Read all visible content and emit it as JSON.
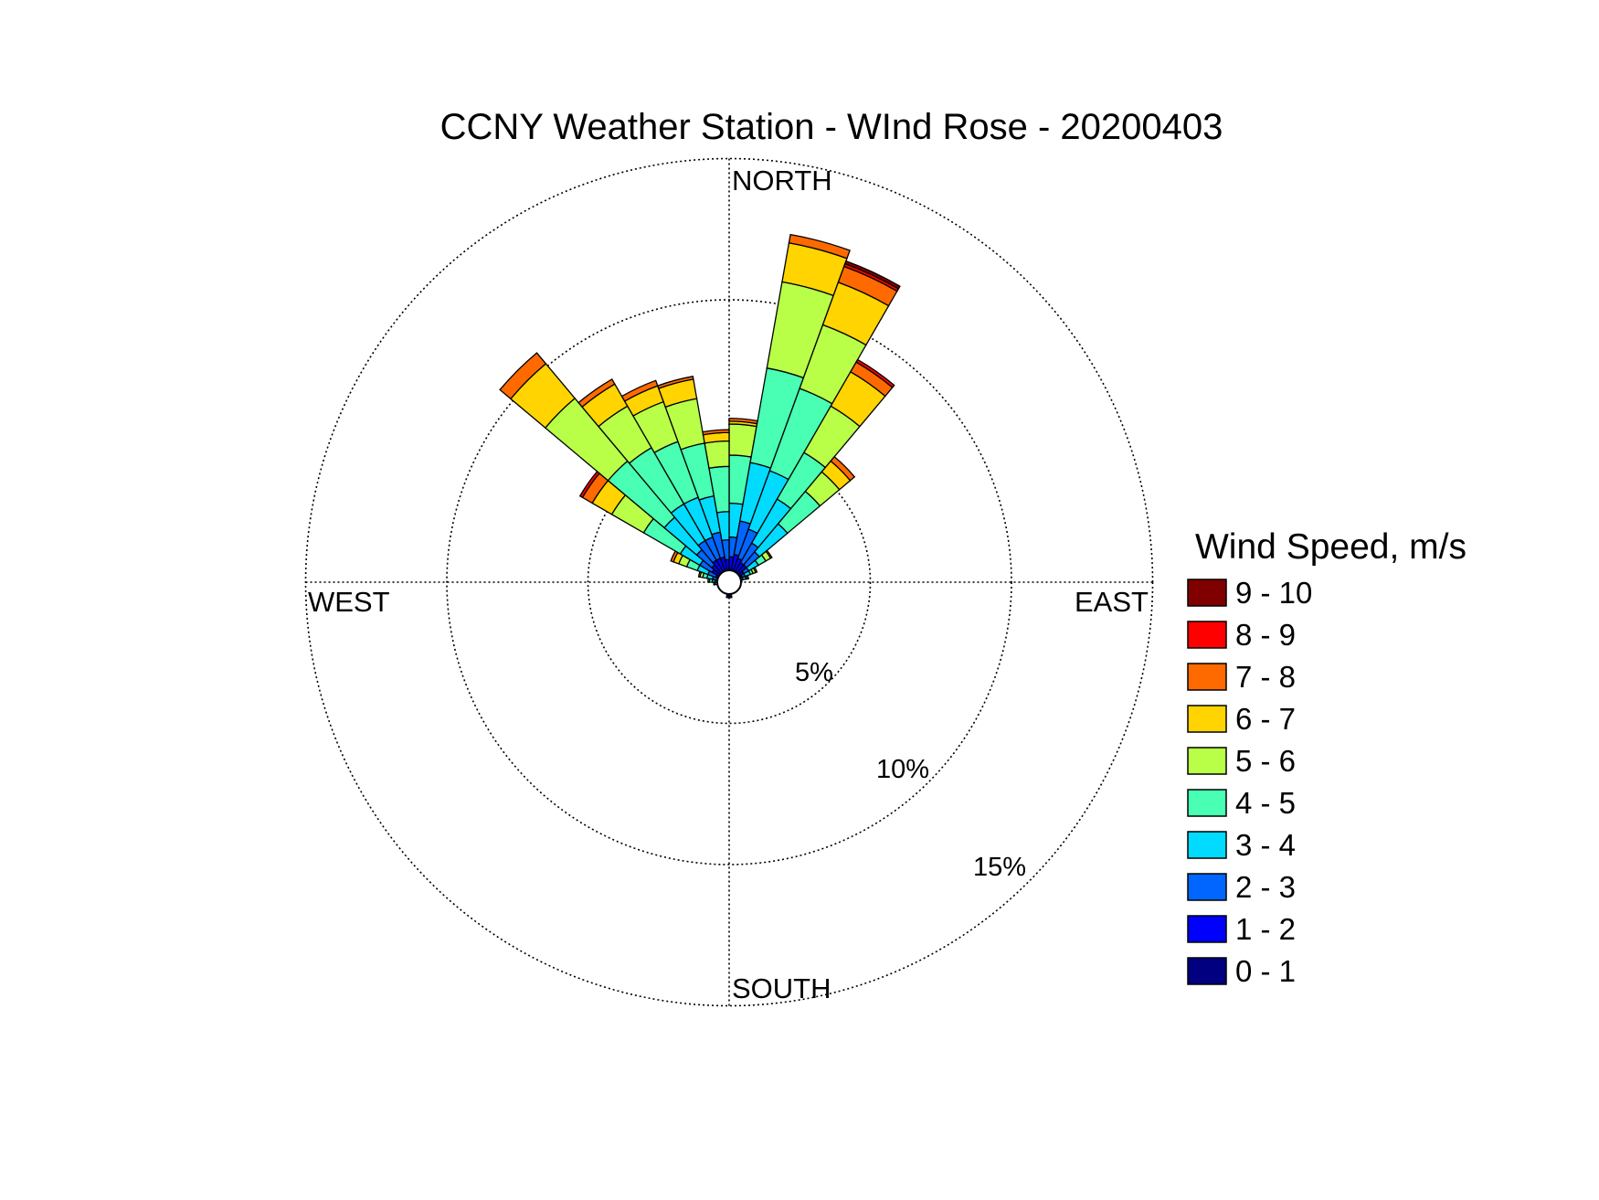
{
  "chart_data": {
    "type": "wind-rose",
    "title": "CCNY Weather Station - WInd Rose - 20200403",
    "directions": {
      "north": "NORTH",
      "east": "EAST",
      "south": "SOUTH",
      "west": "WEST"
    },
    "radial_ticks": [
      5,
      10,
      15
    ],
    "radial_tick_labels": [
      "5%",
      "10%",
      "15%"
    ],
    "radial_max": 15,
    "grid": true,
    "legend": {
      "title": "Wind Speed, m/s",
      "placement": "right",
      "bins": [
        {
          "label": "9 - 10",
          "color": "#800000"
        },
        {
          "label": "8 - 9",
          "color": "#ff0000"
        },
        {
          "label": "7 - 8",
          "color": "#ff6a00"
        },
        {
          "label": "6 - 7",
          "color": "#ffd400"
        },
        {
          "label": "5 - 6",
          "color": "#b9ff48"
        },
        {
          "label": "4 - 5",
          "color": "#48ffb3"
        },
        {
          "label": "3 - 4",
          "color": "#00dbff"
        },
        {
          "label": "2 - 3",
          "color": "#0066ff"
        },
        {
          "label": "1 - 2",
          "color": "#0000ff"
        },
        {
          "label": "0 - 1",
          "color": "#000080"
        }
      ]
    },
    "sector_width_deg": 10,
    "sectors": [
      {
        "direction_deg": 5,
        "cumulative": [
          0.3,
          0.9,
          1.6,
          2.8,
          4.5,
          5.6,
          5.7,
          5.8,
          5.8,
          5.8
        ]
      },
      {
        "direction_deg": 15,
        "cumulative": [
          0.3,
          1.0,
          2.2,
          4.3,
          7.7,
          10.8,
          12.2,
          12.5,
          12.5,
          12.5
        ]
      },
      {
        "direction_deg": 25,
        "cumulative": [
          0.3,
          0.9,
          2.0,
          4.2,
          7.3,
          9.7,
          11.3,
          11.9,
          12.0,
          12.1
        ]
      },
      {
        "direction_deg": 35,
        "cumulative": [
          0.3,
          0.8,
          1.6,
          3.4,
          5.3,
          7.2,
          8.6,
          9.0,
          9.1,
          9.1
        ]
      },
      {
        "direction_deg": 45,
        "cumulative": [
          0.3,
          0.8,
          1.4,
          2.7,
          4.2,
          5.1,
          5.6,
          5.8,
          5.8,
          5.8
        ]
      },
      {
        "direction_deg": 55,
        "cumulative": [
          0.3,
          0.6,
          0.8,
          1.2,
          1.5,
          1.7,
          1.7,
          1.75,
          1.75,
          1.75
        ]
      },
      {
        "direction_deg": 65,
        "cumulative": [
          0.3,
          0.5,
          0.6,
          0.8,
          0.9,
          1.0,
          1.05,
          1.05,
          1.05,
          1.05
        ]
      },
      {
        "direction_deg": 75,
        "cumulative": [
          0.2,
          0.35,
          0.5,
          0.6,
          0.65,
          0.7,
          0.7,
          0.7,
          0.7,
          0.7
        ]
      },
      {
        "direction_deg": 85,
        "cumulative": [
          0.2,
          0.3,
          0.35,
          0.4,
          0.45,
          0.45,
          0.45,
          0.45,
          0.45,
          0.45
        ]
      },
      {
        "direction_deg": 95,
        "cumulative": [
          0.2,
          0.25,
          0.3,
          0.35,
          0.35,
          0.35,
          0.35,
          0.35,
          0.35,
          0.35
        ]
      },
      {
        "direction_deg": 105,
        "cumulative": [
          0.15,
          0.2,
          0.25,
          0.3,
          0.3,
          0.3,
          0.3,
          0.3,
          0.3,
          0.3
        ]
      },
      {
        "direction_deg": 115,
        "cumulative": [
          0.15,
          0.2,
          0.25,
          0.25,
          0.25,
          0.25,
          0.25,
          0.25,
          0.25,
          0.25
        ]
      },
      {
        "direction_deg": 125,
        "cumulative": [
          0.1,
          0.15,
          0.2,
          0.2,
          0.2,
          0.2,
          0.2,
          0.2,
          0.2,
          0.2
        ]
      },
      {
        "direction_deg": 135,
        "cumulative": [
          0.1,
          0.15,
          0.15,
          0.15,
          0.15,
          0.15,
          0.15,
          0.15,
          0.15,
          0.15
        ]
      },
      {
        "direction_deg": 145,
        "cumulative": [
          0.1,
          0.1,
          0.1,
          0.1,
          0.1,
          0.1,
          0.1,
          0.1,
          0.1,
          0.1
        ]
      },
      {
        "direction_deg": 155,
        "cumulative": [
          0.1,
          0.1,
          0.1,
          0.1,
          0.1,
          0.1,
          0.1,
          0.1,
          0.1,
          0.1
        ]
      },
      {
        "direction_deg": 165,
        "cumulative": [
          0.15,
          0.2,
          0.2,
          0.2,
          0.2,
          0.2,
          0.2,
          0.2,
          0.2,
          0.2
        ]
      },
      {
        "direction_deg": 175,
        "cumulative": [
          0.3,
          0.5,
          0.55,
          0.55,
          0.55,
          0.55,
          0.55,
          0.55,
          0.55,
          0.55
        ]
      },
      {
        "direction_deg": 185,
        "cumulative": [
          0.3,
          0.5,
          0.55,
          0.55,
          0.55,
          0.55,
          0.55,
          0.55,
          0.55,
          0.55
        ]
      },
      {
        "direction_deg": 195,
        "cumulative": [
          0.2,
          0.3,
          0.3,
          0.3,
          0.3,
          0.3,
          0.3,
          0.3,
          0.3,
          0.3
        ]
      },
      {
        "direction_deg": 205,
        "cumulative": [
          0.1,
          0.15,
          0.15,
          0.15,
          0.15,
          0.15,
          0.15,
          0.15,
          0.15,
          0.15
        ]
      },
      {
        "direction_deg": 215,
        "cumulative": [
          0.1,
          0.1,
          0.1,
          0.1,
          0.1,
          0.1,
          0.1,
          0.1,
          0.1,
          0.1
        ]
      },
      {
        "direction_deg": 225,
        "cumulative": [
          0.1,
          0.15,
          0.15,
          0.15,
          0.15,
          0.15,
          0.15,
          0.15,
          0.15,
          0.15
        ]
      },
      {
        "direction_deg": 235,
        "cumulative": [
          0.15,
          0.2,
          0.2,
          0.2,
          0.2,
          0.2,
          0.2,
          0.2,
          0.2,
          0.2
        ]
      },
      {
        "direction_deg": 245,
        "cumulative": [
          0.15,
          0.25,
          0.3,
          0.3,
          0.3,
          0.3,
          0.3,
          0.3,
          0.3,
          0.3
        ]
      },
      {
        "direction_deg": 255,
        "cumulative": [
          0.2,
          0.3,
          0.35,
          0.4,
          0.4,
          0.4,
          0.4,
          0.4,
          0.4,
          0.4
        ]
      },
      {
        "direction_deg": 265,
        "cumulative": [
          0.2,
          0.3,
          0.4,
          0.5,
          0.55,
          0.55,
          0.55,
          0.55,
          0.55,
          0.55
        ]
      },
      {
        "direction_deg": 275,
        "cumulative": [
          0.2,
          0.35,
          0.5,
          0.6,
          0.7,
          0.75,
          0.75,
          0.75,
          0.75,
          0.75
        ]
      },
      {
        "direction_deg": 285,
        "cumulative": [
          0.25,
          0.4,
          0.6,
          0.8,
          0.95,
          1.05,
          1.1,
          1.1,
          1.1,
          1.1
        ]
      },
      {
        "direction_deg": 295,
        "cumulative": [
          0.3,
          0.5,
          0.8,
          1.2,
          1.6,
          1.9,
          2.1,
          2.2,
          2.2,
          2.2
        ]
      },
      {
        "direction_deg": 305,
        "cumulative": [
          0.3,
          0.7,
          1.2,
          2.0,
          3.5,
          4.8,
          5.6,
          6.0,
          6.1,
          6.1
        ]
      },
      {
        "direction_deg": 315,
        "cumulative": [
          0.3,
          0.8,
          1.5,
          3.0,
          5.6,
          8.5,
          10.1,
          10.6,
          10.6,
          10.6
        ]
      },
      {
        "direction_deg": 325,
        "cumulative": [
          0.3,
          0.9,
          1.7,
          3.2,
          5.5,
          7.2,
          8.1,
          8.3,
          8.3,
          8.3
        ]
      },
      {
        "direction_deg": 335,
        "cumulative": [
          0.3,
          0.9,
          1.7,
          3.2,
          5.3,
          6.8,
          7.4,
          7.6,
          7.6,
          7.6
        ]
      },
      {
        "direction_deg": 345,
        "cumulative": [
          0.3,
          0.9,
          1.8,
          3.1,
          5.0,
          6.6,
          7.3,
          7.4,
          7.4,
          7.4
        ]
      },
      {
        "direction_deg": 355,
        "cumulative": [
          0.3,
          0.8,
          1.5,
          2.5,
          4.1,
          5.0,
          5.3,
          5.4,
          5.4,
          5.4
        ]
      }
    ]
  }
}
